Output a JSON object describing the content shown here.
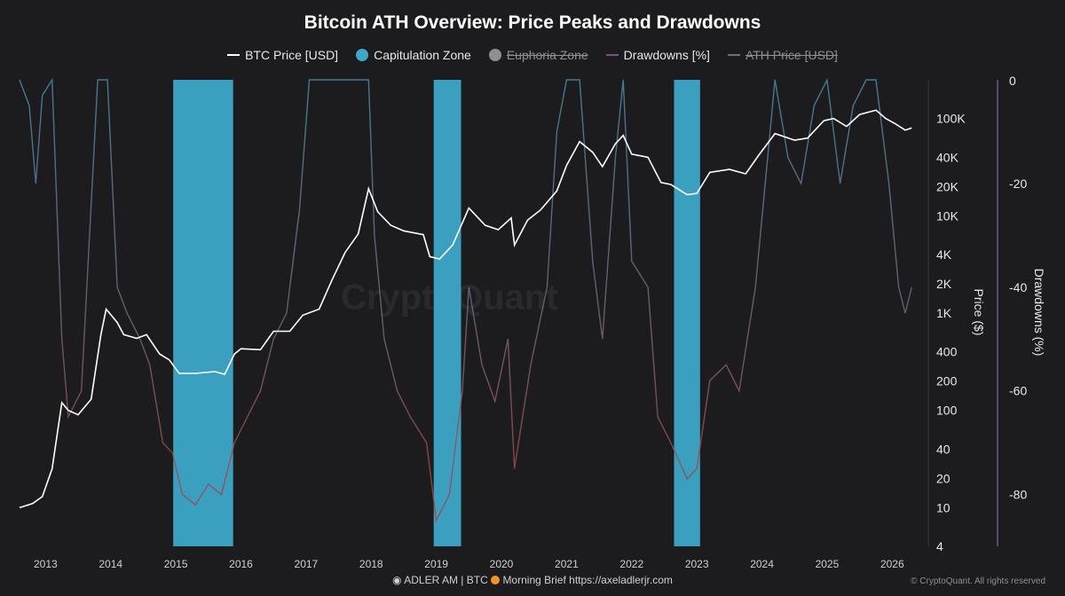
{
  "chart_data": {
    "type": "line",
    "title": "Bitcoin ATH Overview: Price Peaks and Drawdowns",
    "legend": [
      {
        "name": "BTC Price [USD]",
        "style": "line",
        "color": "#ffffff",
        "visible": true
      },
      {
        "name": "Capitulation Zone",
        "style": "dot",
        "color": "#3da7c9",
        "visible": true
      },
      {
        "name": "Euphoria Zone",
        "style": "dot",
        "color": "#8e8e93",
        "visible": false
      },
      {
        "name": "Drawdowns [%]",
        "style": "line",
        "color": "#7a4f8e",
        "visible": true
      },
      {
        "name": "ATH Price [USD]",
        "style": "line",
        "color": "#6e6e73",
        "visible": false
      }
    ],
    "legend_position": "top-center",
    "x_ticks": [
      "2013",
      "2014",
      "2015",
      "2016",
      "2017",
      "2018",
      "2019",
      "2020",
      "2021",
      "2022",
      "2023",
      "2024",
      "2025",
      "2026"
    ],
    "x_range": [
      2012.6,
      2026.5
    ],
    "y_left": {
      "label": "Price ($)",
      "scale": "log",
      "range": [
        4,
        250000
      ],
      "ticks": [
        {
          "value": 4,
          "label": "4"
        },
        {
          "value": 10,
          "label": "10"
        },
        {
          "value": 20,
          "label": "20"
        },
        {
          "value": 40,
          "label": "40"
        },
        {
          "value": 100,
          "label": "100"
        },
        {
          "value": 200,
          "label": "200"
        },
        {
          "value": 400,
          "label": "400"
        },
        {
          "value": 1000,
          "label": "1K"
        },
        {
          "value": 2000,
          "label": "2K"
        },
        {
          "value": 4000,
          "label": "4K"
        },
        {
          "value": 10000,
          "label": "10K"
        },
        {
          "value": 20000,
          "label": "20K"
        },
        {
          "value": 40000,
          "label": "40K"
        },
        {
          "value": 100000,
          "label": "100K"
        }
      ]
    },
    "y_right": {
      "label": "Drawdowns (%)",
      "range": [
        -90,
        0
      ],
      "ticks": [
        0,
        -20,
        -40,
        -60,
        -80
      ]
    },
    "grid": false,
    "price_series": {
      "name": "BTC Price [USD]",
      "points": [
        [
          2012.6,
          10
        ],
        [
          2012.8,
          11
        ],
        [
          2012.95,
          13
        ],
        [
          2013.1,
          25
        ],
        [
          2013.25,
          120
        ],
        [
          2013.35,
          100
        ],
        [
          2013.5,
          90
        ],
        [
          2013.7,
          130
        ],
        [
          2013.85,
          600
        ],
        [
          2013.93,
          1100
        ],
        [
          2014.1,
          800
        ],
        [
          2014.2,
          600
        ],
        [
          2014.4,
          550
        ],
        [
          2014.55,
          600
        ],
        [
          2014.75,
          380
        ],
        [
          2014.9,
          330
        ],
        [
          2015.05,
          240
        ],
        [
          2015.3,
          240
        ],
        [
          2015.6,
          250
        ],
        [
          2015.75,
          235
        ],
        [
          2015.9,
          380
        ],
        [
          2016.0,
          430
        ],
        [
          2016.3,
          420
        ],
        [
          2016.5,
          650
        ],
        [
          2016.75,
          650
        ],
        [
          2016.95,
          950
        ],
        [
          2017.2,
          1100
        ],
        [
          2017.4,
          2200
        ],
        [
          2017.6,
          4200
        ],
        [
          2017.8,
          6500
        ],
        [
          2017.96,
          19000
        ],
        [
          2018.1,
          11000
        ],
        [
          2018.3,
          8000
        ],
        [
          2018.5,
          7000
        ],
        [
          2018.8,
          6400
        ],
        [
          2018.9,
          3800
        ],
        [
          2019.05,
          3600
        ],
        [
          2019.25,
          5000
        ],
        [
          2019.5,
          12000
        ],
        [
          2019.75,
          8000
        ],
        [
          2019.95,
          7200
        ],
        [
          2020.15,
          9500
        ],
        [
          2020.2,
          5000
        ],
        [
          2020.4,
          9000
        ],
        [
          2020.6,
          11500
        ],
        [
          2020.85,
          18000
        ],
        [
          2021.0,
          33000
        ],
        [
          2021.2,
          58000
        ],
        [
          2021.4,
          45000
        ],
        [
          2021.55,
          32000
        ],
        [
          2021.75,
          55000
        ],
        [
          2021.87,
          67000
        ],
        [
          2022.0,
          43000
        ],
        [
          2022.25,
          40000
        ],
        [
          2022.45,
          22000
        ],
        [
          2022.6,
          21000
        ],
        [
          2022.85,
          16500
        ],
        [
          2023.0,
          17000
        ],
        [
          2023.2,
          28000
        ],
        [
          2023.5,
          30000
        ],
        [
          2023.75,
          27000
        ],
        [
          2023.95,
          42000
        ],
        [
          2024.2,
          70000
        ],
        [
          2024.5,
          60000
        ],
        [
          2024.7,
          63000
        ],
        [
          2024.95,
          95000
        ],
        [
          2025.1,
          100000
        ],
        [
          2025.3,
          83000
        ],
        [
          2025.5,
          110000
        ],
        [
          2025.75,
          122000
        ],
        [
          2025.9,
          100000
        ],
        [
          2026.05,
          88000
        ],
        [
          2026.2,
          76000
        ],
        [
          2026.3,
          80000
        ]
      ]
    },
    "drawdown_series": {
      "name": "Drawdowns [%]",
      "points": [
        [
          2012.6,
          0
        ],
        [
          2012.75,
          -5
        ],
        [
          2012.85,
          -20
        ],
        [
          2012.95,
          -3
        ],
        [
          2013.1,
          0
        ],
        [
          2013.25,
          -50
        ],
        [
          2013.35,
          -65
        ],
        [
          2013.55,
          -60
        ],
        [
          2013.8,
          0
        ],
        [
          2013.95,
          0
        ],
        [
          2014.1,
          -40
        ],
        [
          2014.25,
          -45
        ],
        [
          2014.45,
          -50
        ],
        [
          2014.6,
          -55
        ],
        [
          2014.8,
          -70
        ],
        [
          2014.95,
          -72
        ],
        [
          2015.1,
          -80
        ],
        [
          2015.3,
          -82
        ],
        [
          2015.5,
          -78
        ],
        [
          2015.7,
          -80
        ],
        [
          2015.9,
          -70
        ],
        [
          2016.1,
          -65
        ],
        [
          2016.3,
          -60
        ],
        [
          2016.5,
          -50
        ],
        [
          2016.7,
          -45
        ],
        [
          2016.9,
          -25
        ],
        [
          2017.05,
          0
        ],
        [
          2017.4,
          0
        ],
        [
          2017.96,
          0
        ],
        [
          2018.05,
          -30
        ],
        [
          2018.2,
          -50
        ],
        [
          2018.4,
          -60
        ],
        [
          2018.6,
          -65
        ],
        [
          2018.85,
          -70
        ],
        [
          2019.0,
          -85
        ],
        [
          2019.2,
          -80
        ],
        [
          2019.4,
          -60
        ],
        [
          2019.5,
          -40
        ],
        [
          2019.7,
          -55
        ],
        [
          2019.9,
          -62
        ],
        [
          2020.1,
          -50
        ],
        [
          2020.2,
          -75
        ],
        [
          2020.45,
          -55
        ],
        [
          2020.7,
          -40
        ],
        [
          2020.85,
          -10
        ],
        [
          2021.0,
          0
        ],
        [
          2021.2,
          0
        ],
        [
          2021.4,
          -35
        ],
        [
          2021.55,
          -50
        ],
        [
          2021.75,
          -15
        ],
        [
          2021.87,
          0
        ],
        [
          2022.0,
          -35
        ],
        [
          2022.25,
          -40
        ],
        [
          2022.4,
          -65
        ],
        [
          2022.6,
          -70
        ],
        [
          2022.85,
          -77
        ],
        [
          2023.0,
          -75
        ],
        [
          2023.2,
          -58
        ],
        [
          2023.45,
          -55
        ],
        [
          2023.65,
          -60
        ],
        [
          2023.9,
          -40
        ],
        [
          2024.05,
          -20
        ],
        [
          2024.2,
          0
        ],
        [
          2024.4,
          -15
        ],
        [
          2024.6,
          -20
        ],
        [
          2024.8,
          -5
        ],
        [
          2025.0,
          0
        ],
        [
          2025.2,
          -20
        ],
        [
          2025.4,
          -5
        ],
        [
          2025.6,
          0
        ],
        [
          2025.75,
          0
        ],
        [
          2025.95,
          -20
        ],
        [
          2026.1,
          -40
        ],
        [
          2026.2,
          -45
        ],
        [
          2026.3,
          -40
        ]
      ]
    },
    "capitulation_zones": [
      [
        2014.96,
        2015.88
      ],
      [
        2018.96,
        2019.38
      ],
      [
        2022.65,
        2023.05
      ]
    ],
    "watermark": "CryptoQuant"
  },
  "footer": {
    "left": "ADLER AM | BTC",
    "middle": "Morning Brief",
    "link": "https://axeladlerjr.com",
    "right": "© CryptoQuant. All rights reserved"
  },
  "colors": {
    "background": "#1c1c1e",
    "price_line": "#ffffff",
    "capitulation": "#3da7c9",
    "drawdown_high": "#4a8aa8",
    "drawdown_low": "#b03a3a",
    "right_axis": "#7a4f8e"
  }
}
